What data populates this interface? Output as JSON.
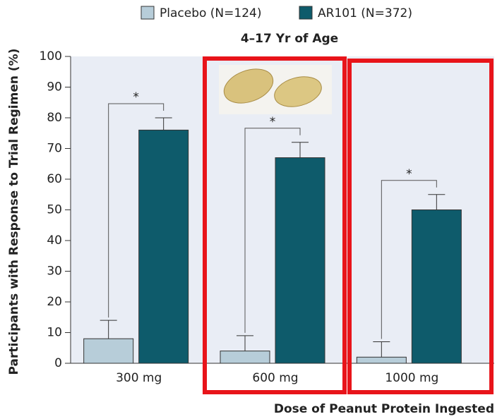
{
  "chart_data": {
    "type": "bar",
    "title": "4–17 Yr of Age",
    "y_label": "Participants with Response to Trial Regimen (%)",
    "x_label": "Dose of Peanut Protein Ingested",
    "categories": [
      "300 mg",
      "600 mg",
      "1000 mg"
    ],
    "series": [
      {
        "name": "Placebo (N=124)",
        "color": "#b7cdd9",
        "values": [
          8,
          4,
          2
        ],
        "errors": [
          6,
          5,
          5
        ]
      },
      {
        "name": "AR101 (N=372)",
        "color": "#0e5b6b",
        "values": [
          76,
          67,
          50
        ],
        "errors": [
          4,
          5,
          5
        ]
      }
    ],
    "annotations": [
      "*",
      "*",
      "*"
    ],
    "ylim": [
      0,
      100
    ],
    "yticks": [
      0,
      10,
      20,
      30,
      40,
      50,
      60,
      70,
      80,
      90,
      100
    ],
    "grid": false
  }
}
